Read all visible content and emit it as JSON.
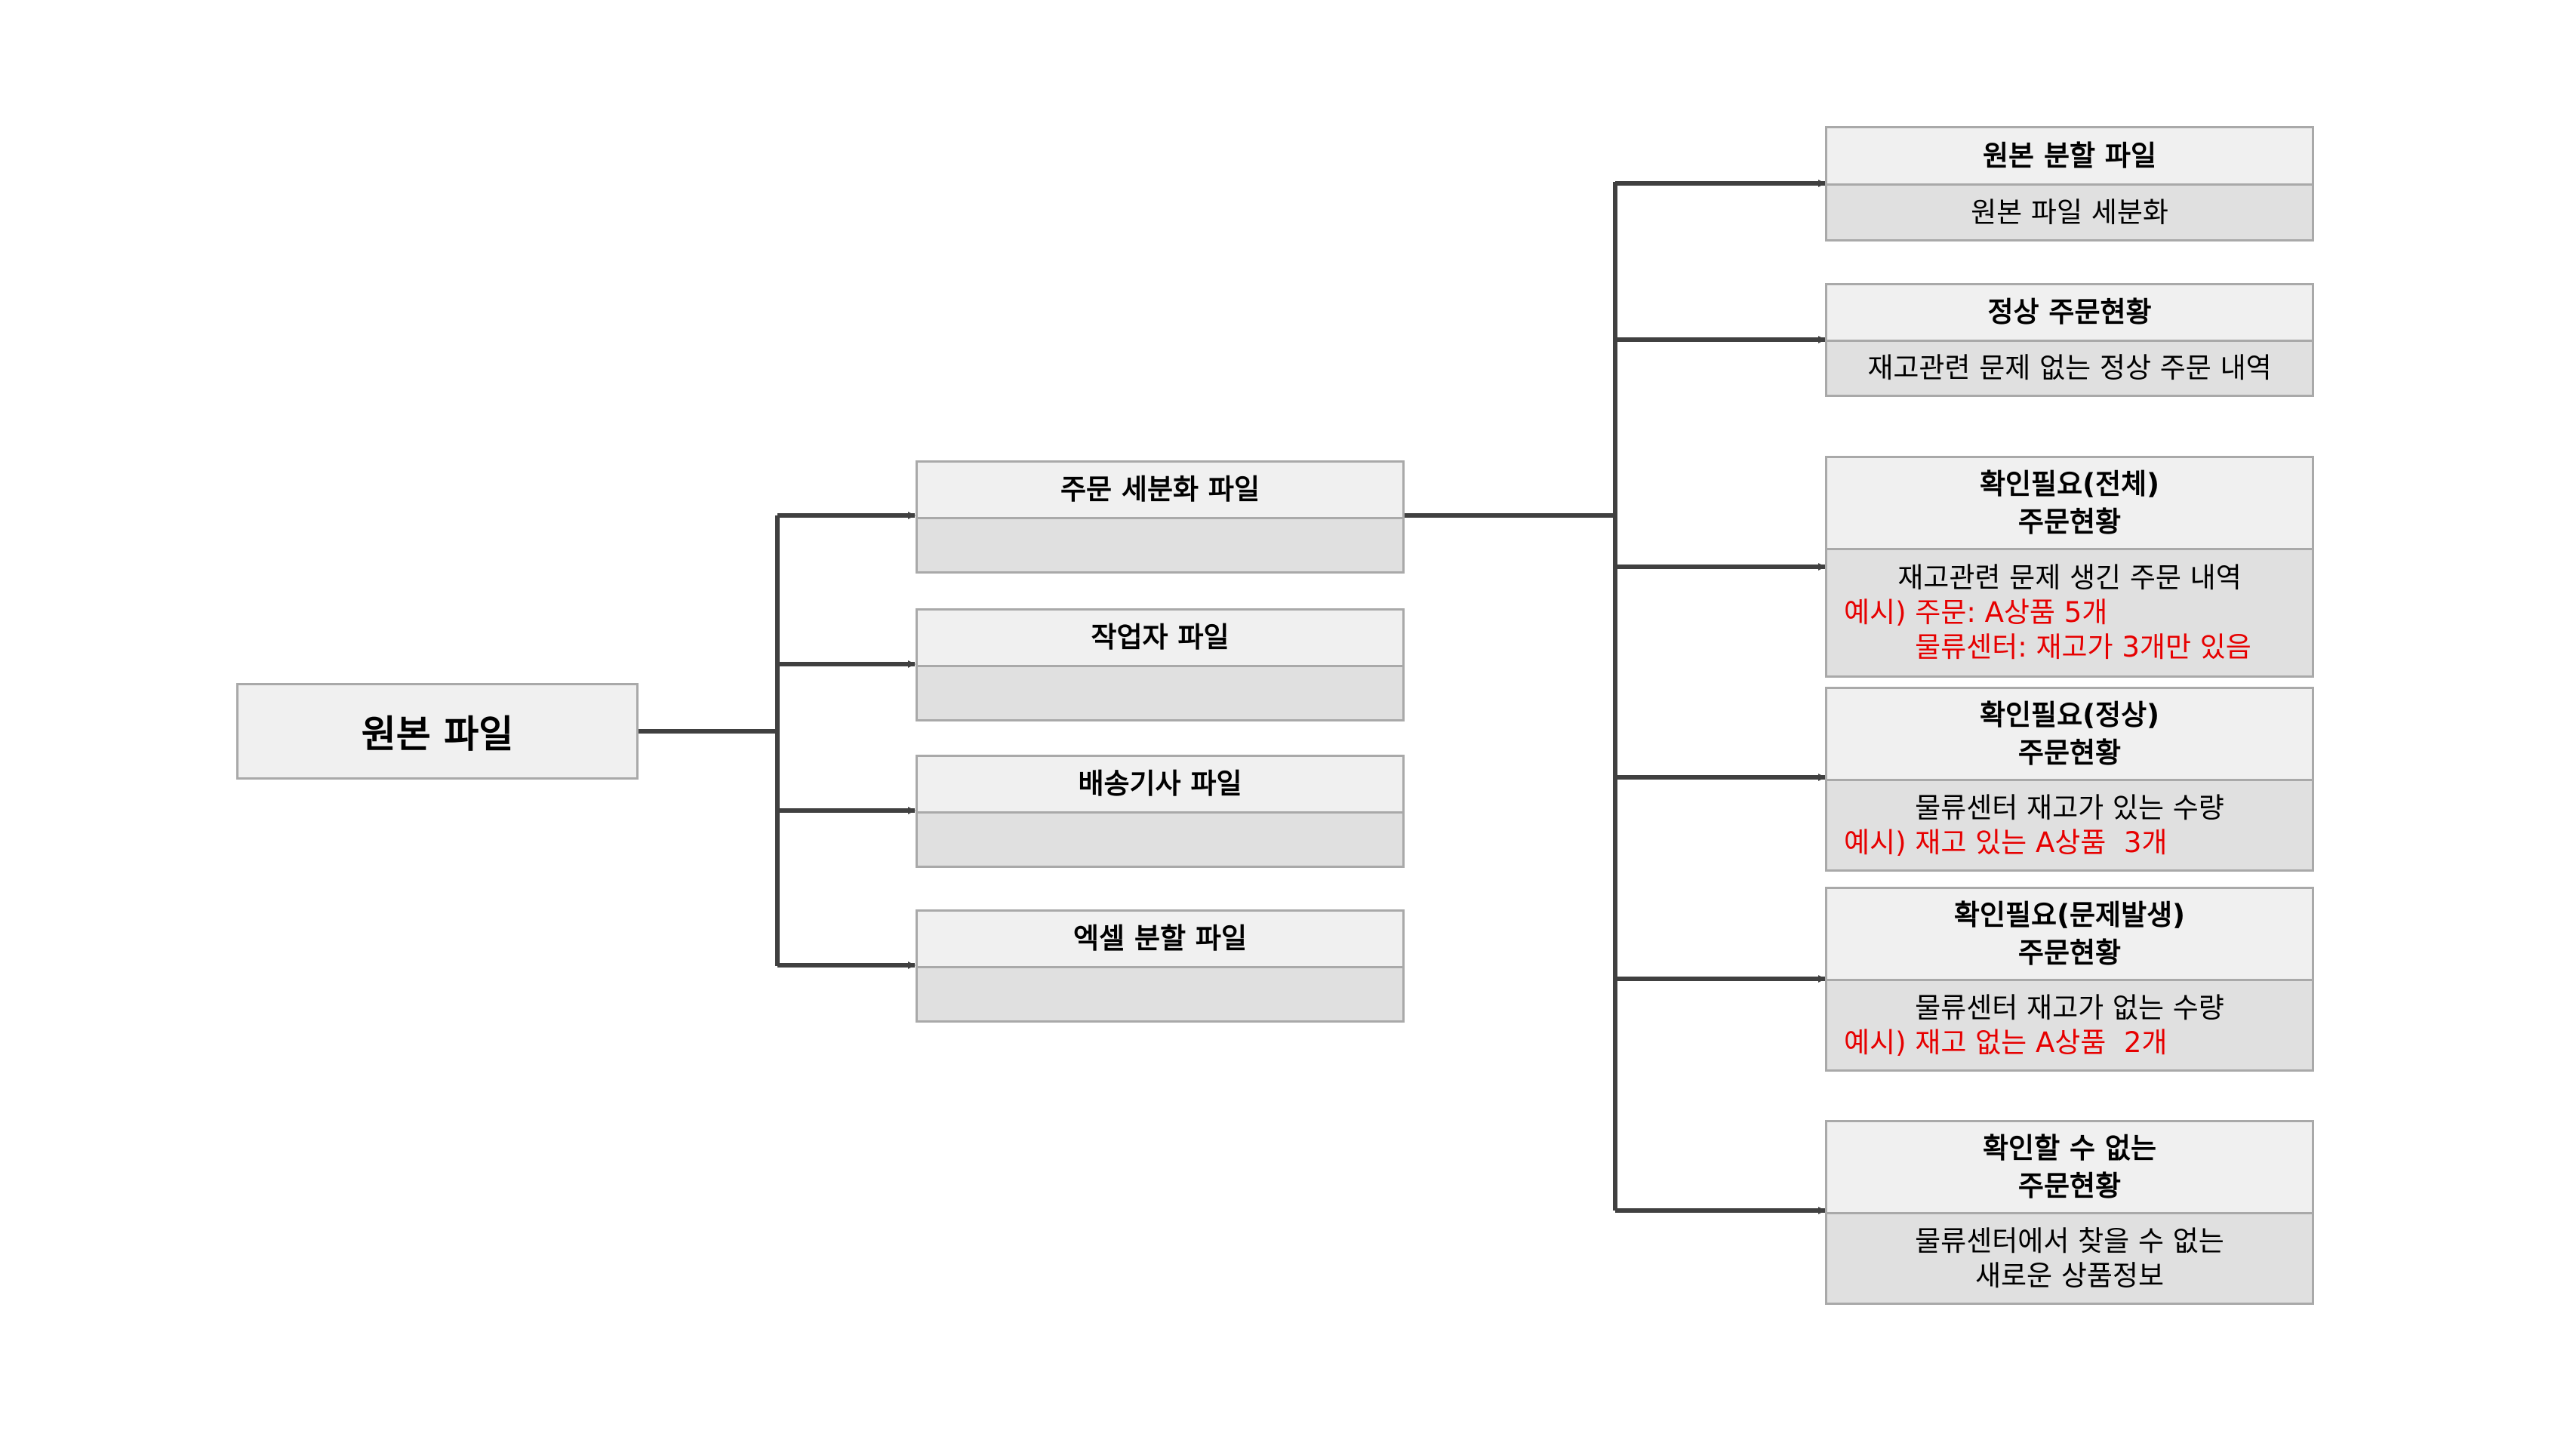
{
  "root": {
    "label": "원본 파일"
  },
  "middle": [
    {
      "title": "주문 세분화 파일",
      "body": ""
    },
    {
      "title": "작업자 파일",
      "body": ""
    },
    {
      "title": "배송기사 파일",
      "body": ""
    },
    {
      "title": "엑셀 분할 파일",
      "body": ""
    }
  ],
  "right": [
    {
      "title": [
        "원본 분할 파일"
      ],
      "desc": [
        "원본 파일 세분화"
      ],
      "example": []
    },
    {
      "title": [
        "정상 주문현황"
      ],
      "desc": [
        "재고관련 문제 없는 정상 주문 내역"
      ],
      "example": []
    },
    {
      "title": [
        "확인필요(전체)",
        "주문현황"
      ],
      "desc": [
        "재고관련 문제 생긴 주문 내역"
      ],
      "example": [
        "예시) 주문: A상품 5개",
        "        물류센터: 재고가 3개만 있음"
      ]
    },
    {
      "title": [
        "확인필요(정상)",
        "주문현황"
      ],
      "desc": [
        "물류센터 재고가 있는 수량"
      ],
      "example": [
        "예시) 재고 있는 A상품  3개"
      ]
    },
    {
      "title": [
        "확인필요(문제발생)",
        "주문현황"
      ],
      "desc": [
        "물류센터 재고가 없는 수량"
      ],
      "example": [
        "예시) 재고 없는 A상품  2개"
      ]
    },
    {
      "title": [
        "확인할 수 없는",
        "주문현황"
      ],
      "desc": [
        "물류센터에서 찾을 수 없는",
        "새로운 상품정보"
      ],
      "example": []
    }
  ],
  "colors": {
    "line": "#404040",
    "header_fill": "#f0f0f0",
    "body_fill": "#e0e0e0",
    "border": "#a9a9a9",
    "example_text": "#e60000"
  }
}
